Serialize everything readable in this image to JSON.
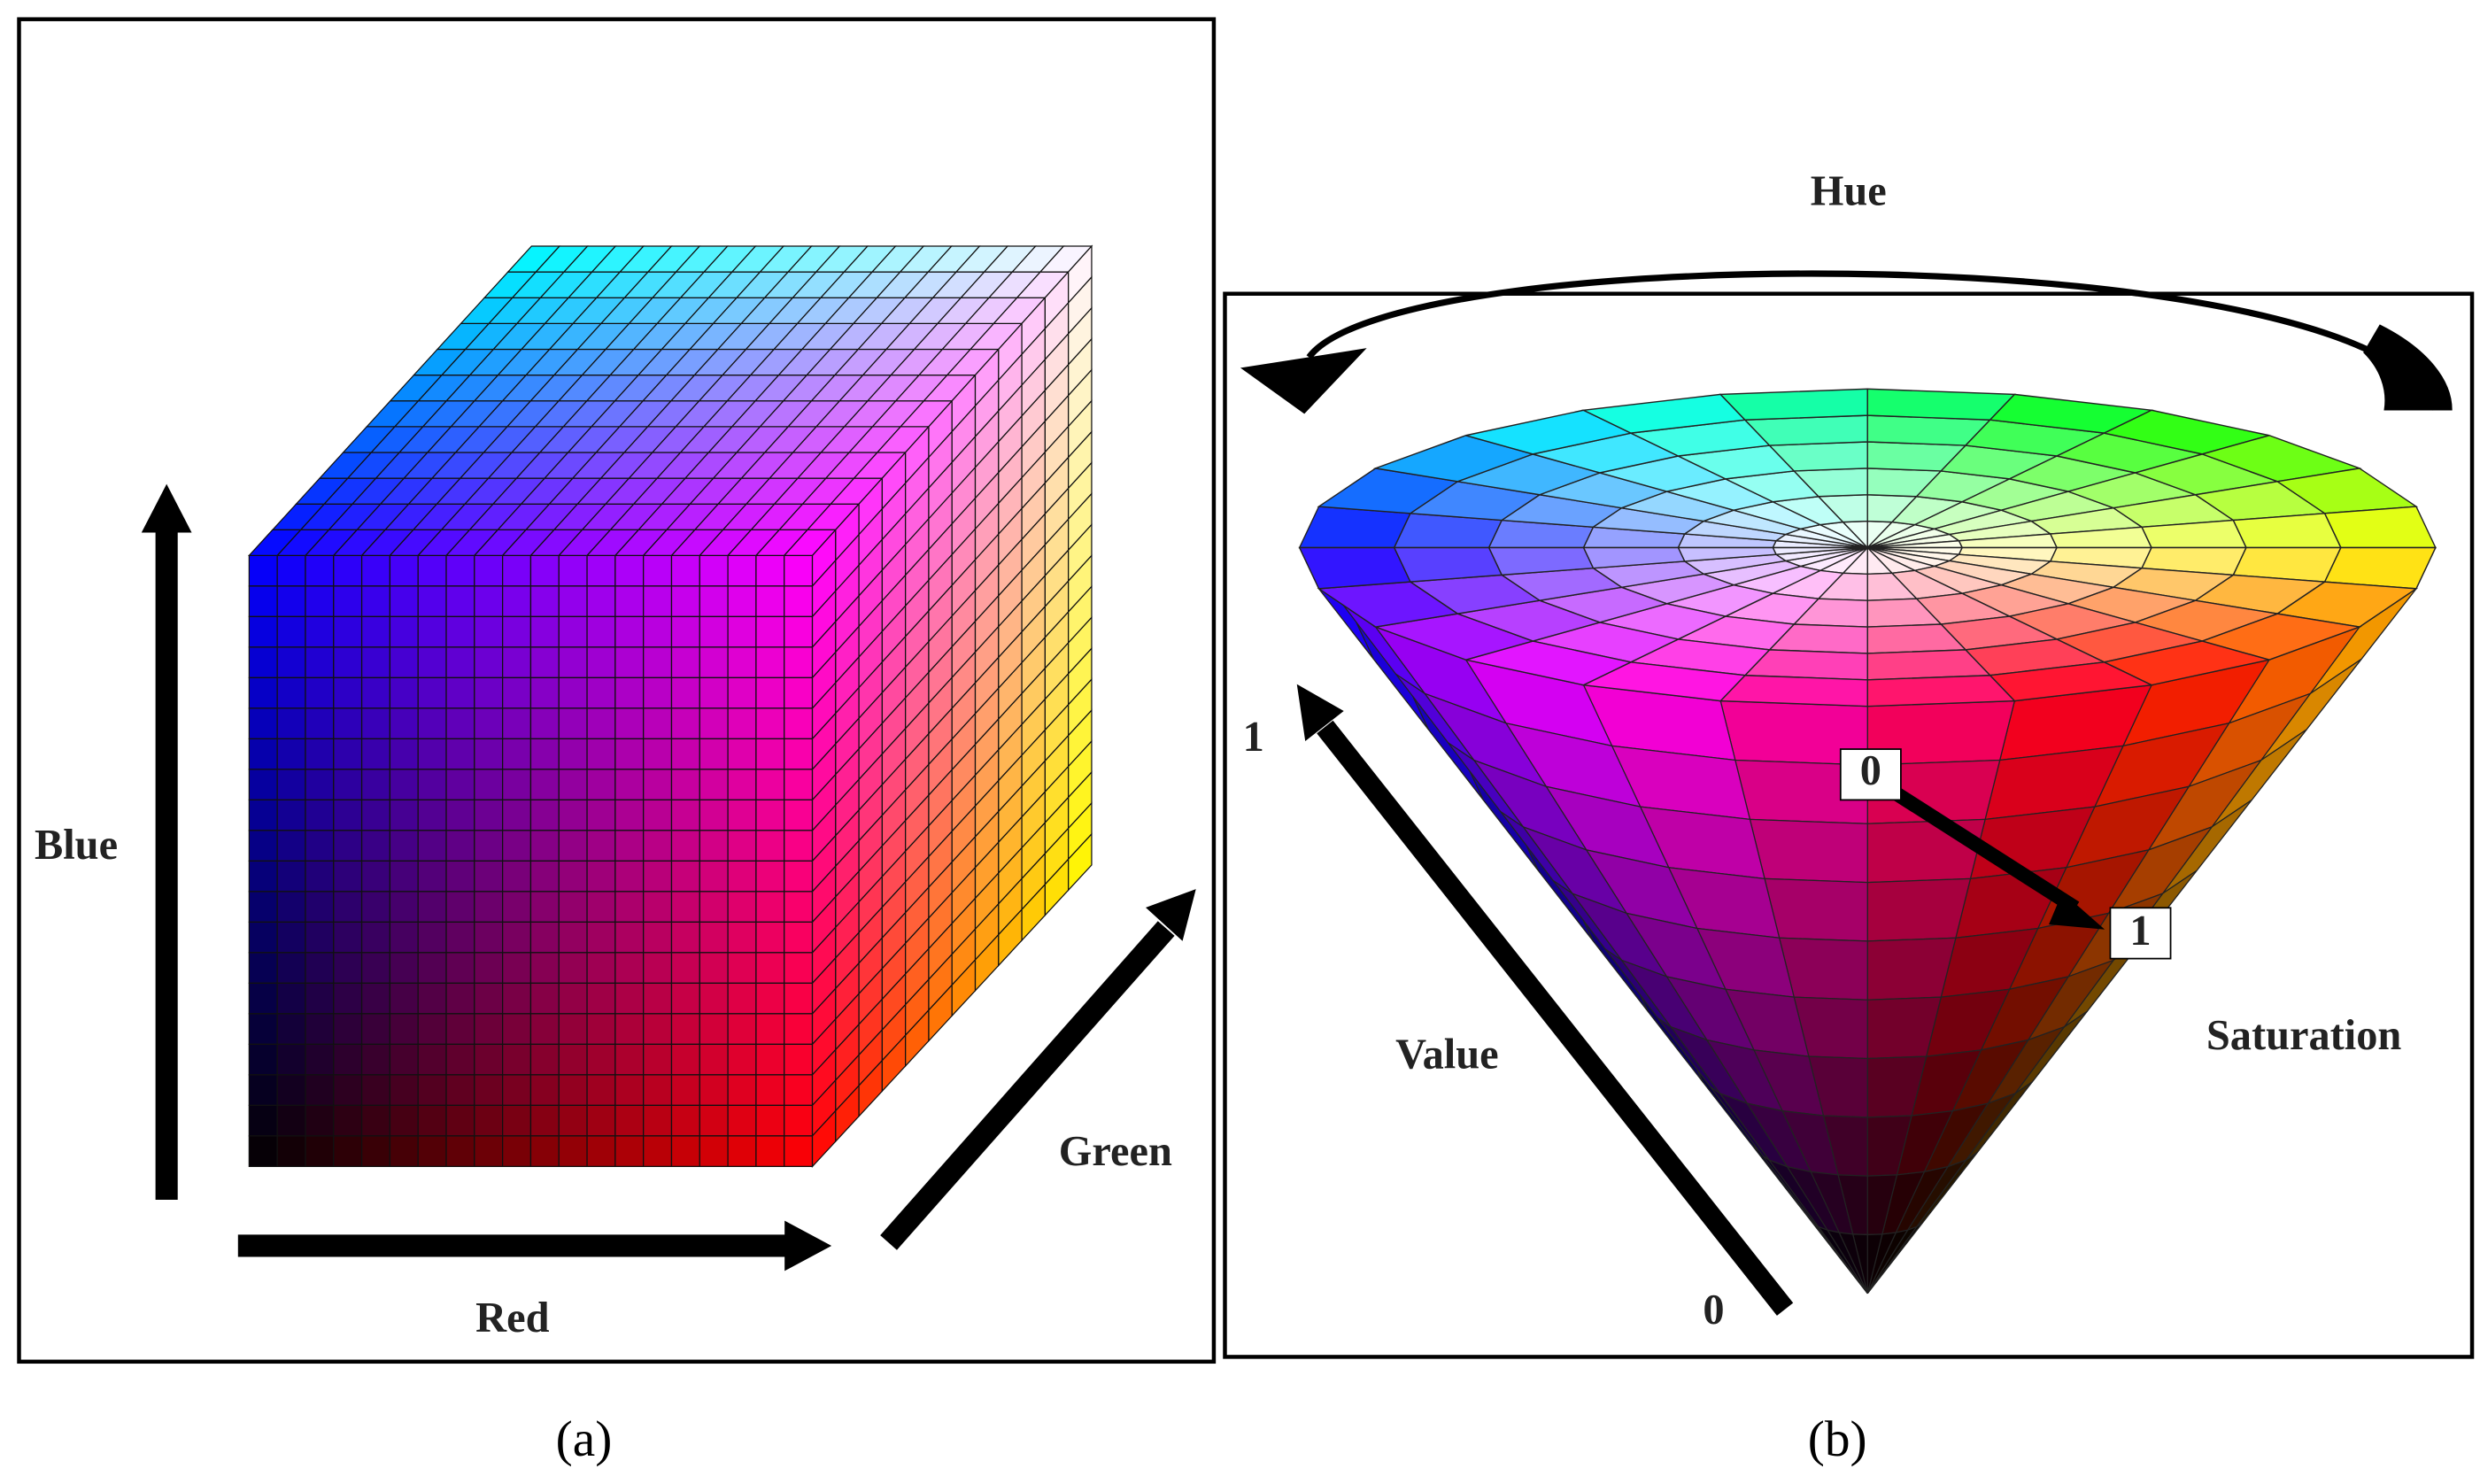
{
  "panel_a": {
    "axes": {
      "blue": "Blue",
      "red": "Red",
      "green": "Green"
    },
    "caption": "(a)"
  },
  "panel_b": {
    "hue": "Hue",
    "value": {
      "label": "Value",
      "max": 1,
      "min": 0
    },
    "saturation": {
      "label": "Saturation",
      "min": 0,
      "max": 1
    },
    "caption": "(b)"
  }
}
